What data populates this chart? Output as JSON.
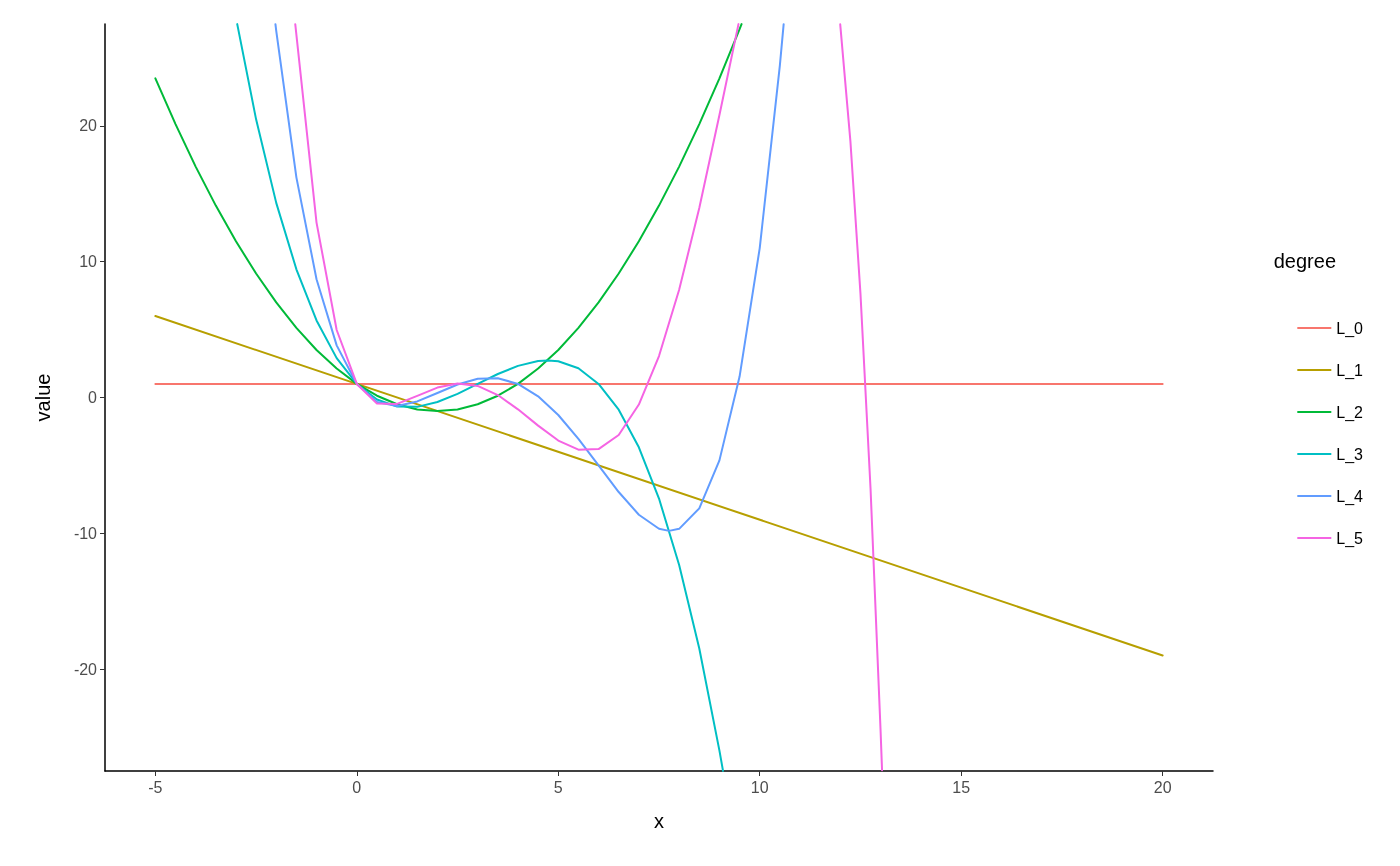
{
  "chart_data": {
    "type": "line",
    "xlabel": "x",
    "ylabel": "value",
    "legend_title": "degree",
    "legend": "right",
    "grid": false,
    "xlim": [
      -6.25,
      21.25
    ],
    "xticks": [
      -5,
      0,
      5,
      10,
      15,
      20
    ],
    "ylim": [
      -27.5,
      27.5
    ],
    "yticks": [
      -20,
      -10,
      0,
      10,
      20
    ],
    "series": [
      {
        "name": "L_0",
        "color": "#f8766d",
        "x": [
          -5,
          20
        ],
        "values": [
          1,
          1
        ]
      },
      {
        "name": "L_1",
        "color": "#b79f00",
        "x": [
          -5,
          20
        ],
        "values": [
          6,
          -19
        ]
      },
      {
        "name": "L_2",
        "color": "#00ba38",
        "x": [
          -5,
          -4.5,
          -4,
          -3.5,
          -3,
          -2.5,
          -2,
          -1.5,
          -1,
          -0.5,
          0,
          0.5,
          1,
          1.5,
          2,
          2.5,
          3,
          3.5,
          4,
          4.5,
          5,
          5.5,
          6,
          6.5,
          7,
          7.5,
          8,
          8.5,
          9,
          9.5,
          9.549
        ],
        "values": [
          23.5,
          20.13,
          17,
          14.13,
          11.5,
          9.13,
          7,
          5.13,
          3.5,
          2.13,
          1,
          0.13,
          -0.5,
          -0.88,
          -1,
          -0.88,
          -0.5,
          0.13,
          1,
          2.13,
          3.5,
          5.13,
          7,
          9.13,
          11.5,
          14.13,
          17,
          20.13,
          23.5,
          27.13,
          27.49
        ]
      },
      {
        "name": "L_3",
        "color": "#00bfc4",
        "x": [
          -2.968,
          -2.5,
          -2,
          -1.5,
          -1,
          -0.5,
          0,
          0.5,
          1,
          1.5,
          2,
          2.5,
          3,
          3.5,
          4,
          4.5,
          4.75,
          5,
          5.5,
          6,
          6.5,
          7,
          7.5,
          8,
          8.5,
          9,
          9.089
        ],
        "values": [
          27.49,
          20.48,
          14.33,
          9.44,
          5.67,
          2.9,
          1,
          -0.15,
          -0.67,
          -0.69,
          -0.33,
          0.27,
          1,
          1.73,
          2.33,
          2.69,
          2.73,
          2.67,
          2.15,
          1,
          -0.9,
          -3.67,
          -7.44,
          -12.33,
          -18.48,
          -26,
          -27.49
        ]
      },
      {
        "name": "L_4",
        "color": "#619cff",
        "x": [
          -2.02,
          -2,
          -1.5,
          -1,
          -0.5,
          0,
          0.5,
          1,
          1.5,
          2,
          2.5,
          3,
          3.5,
          4,
          4.5,
          5,
          5.5,
          6,
          6.5,
          7,
          7.5,
          7.75,
          8,
          8.5,
          9,
          9.5,
          10,
          10.5,
          10.594
        ],
        "values": [
          27.49,
          27,
          16.21,
          8.71,
          3.84,
          1,
          -0.33,
          -0.63,
          -0.29,
          0.33,
          0.96,
          1.38,
          1.42,
          1,
          0.09,
          -1.29,
          -3.04,
          -5,
          -6.96,
          -8.63,
          -9.66,
          -9.82,
          -9.67,
          -8.16,
          -4.63,
          1.54,
          11,
          24.46,
          27.49
        ]
      },
      {
        "name": "L_5",
        "color": "#f564e3",
        "x": [
          -1.528,
          -1,
          -0.5,
          0,
          0.5,
          1,
          1.5,
          2,
          2.5,
          3,
          3.5,
          4,
          4.5,
          5,
          5.5,
          6,
          6.5,
          7,
          7.5,
          8,
          8.5,
          9,
          9.473,
          10.5,
          11.998,
          12,
          12.25,
          12.5,
          12.75,
          13,
          13.036
        ],
        "values": [
          27.49,
          12.88,
          4.97,
          1,
          -0.45,
          -0.47,
          0.12,
          0.73,
          1.03,
          0.85,
          0.18,
          -0.87,
          -2.07,
          -3.17,
          -3.84,
          -3.8,
          -2.76,
          -0.52,
          3.05,
          7.93,
          13.95,
          20.8,
          27.49,
          null,
          27.48,
          27.4,
          18.9,
          7.67,
          -6.68,
          -24.57,
          -27.45
        ]
      }
    ]
  }
}
